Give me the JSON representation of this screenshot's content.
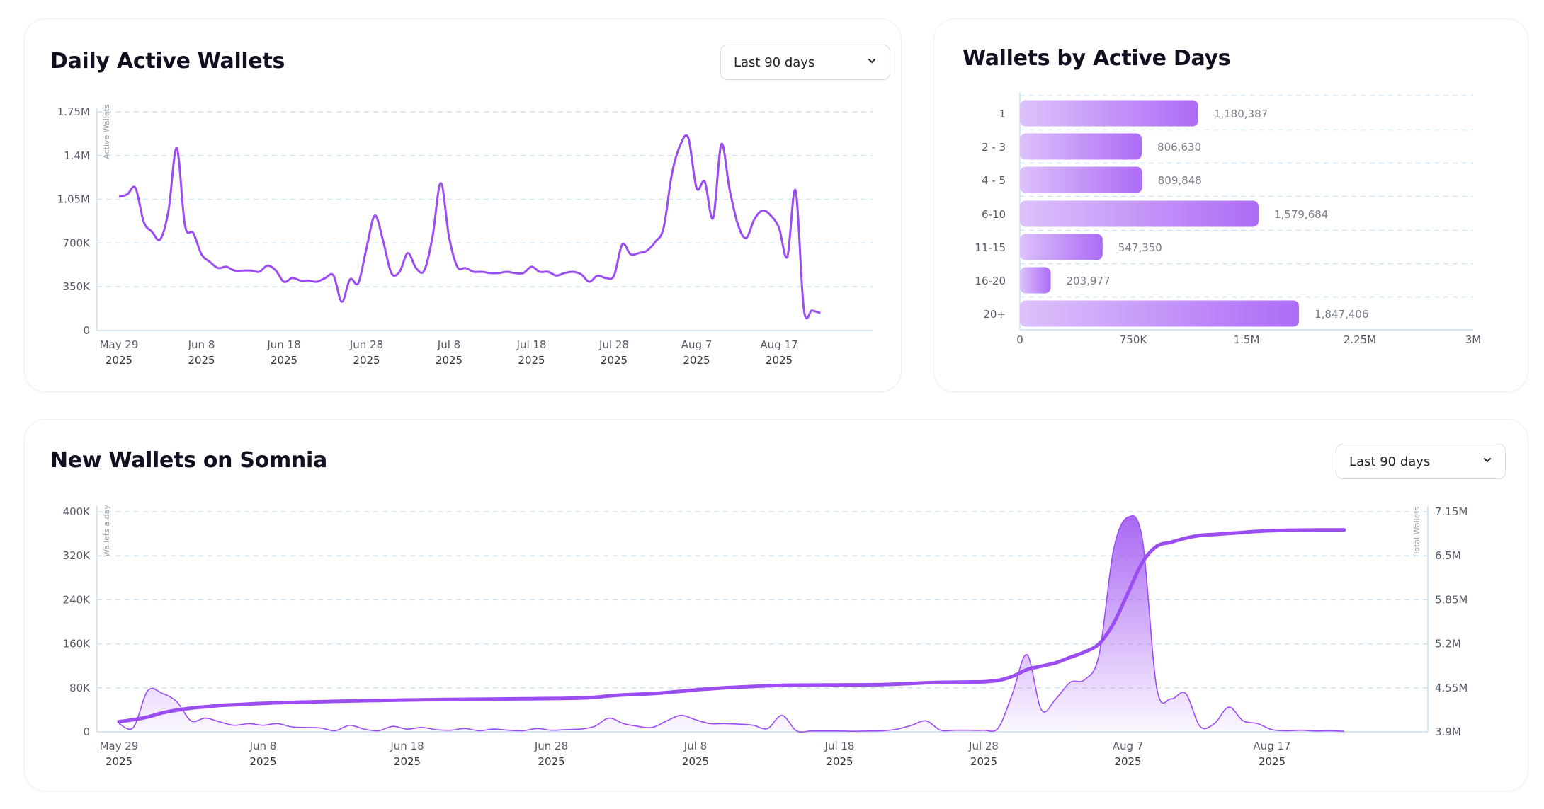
{
  "colors": {
    "accent": "#9b4df2",
    "bar_start": "#dcc2fb",
    "bar_end": "#ad6bf6",
    "grid": "#cfe4f2",
    "tick": "#555a66",
    "axis": "#c9e0f0"
  },
  "dropdown_icon": "chevron-down-icon",
  "daily_active_wallets": {
    "title": "Daily Active Wallets",
    "range_select": "Last 90 days"
  },
  "wallets_by_active_days": {
    "title": "Wallets by Active Days"
  },
  "new_wallets": {
    "title": "New Wallets on Somnia",
    "range_select": "Last 90 days"
  },
  "chart_data": [
    {
      "type": "line",
      "title": "Daily Active Wallets",
      "ylabel": "Active Wallets",
      "ylim": [
        0,
        1750000
      ],
      "y_ticks": [
        "0",
        "350K",
        "700K",
        "1.05M",
        "1.4M",
        "1.75M"
      ],
      "x_ticks": [
        [
          "May 29",
          "2025"
        ],
        [
          "Jun 8",
          "2025"
        ],
        [
          "Jun 18",
          "2025"
        ],
        [
          "Jun 28",
          "2025"
        ],
        [
          "Jul 8",
          "2025"
        ],
        [
          "Jul 18",
          "2025"
        ],
        [
          "Jul 28",
          "2025"
        ],
        [
          "Aug 7",
          "2025"
        ],
        [
          "Aug 17",
          "2025"
        ]
      ],
      "x_start": "2025-05-29",
      "grid": true,
      "series": [
        {
          "values": [
            1070000,
            1090000,
            1140000,
            870000,
            790000,
            730000,
            960000,
            1460000,
            840000,
            780000,
            610000,
            550000,
            500000,
            510000,
            480000,
            480000,
            480000,
            470000,
            520000,
            480000,
            390000,
            420000,
            400000,
            400000,
            390000,
            420000,
            440000,
            230000,
            410000,
            380000,
            660000,
            920000,
            720000,
            460000,
            470000,
            620000,
            500000,
            480000,
            750000,
            1180000,
            750000,
            510000,
            500000,
            470000,
            470000,
            460000,
            460000,
            470000,
            460000,
            460000,
            510000,
            470000,
            470000,
            440000,
            460000,
            470000,
            450000,
            390000,
            440000,
            420000,
            440000,
            690000,
            610000,
            620000,
            640000,
            710000,
            820000,
            1250000,
            1480000,
            1540000,
            1140000,
            1190000,
            900000,
            1490000,
            1130000,
            850000,
            740000,
            890000,
            960000,
            920000,
            820000,
            590000,
            1120000,
            170000,
            160000,
            140000
          ]
        }
      ]
    },
    {
      "type": "bar",
      "orientation": "horizontal",
      "title": "Wallets by Active Days",
      "categories": [
        "1",
        "2 - 3",
        "4 - 5",
        "6-10",
        "11-15",
        "16-20",
        "20+"
      ],
      "values": [
        1180387,
        806630,
        809848,
        1579684,
        547350,
        203977,
        1847406
      ],
      "value_labels": [
        "1,180,387",
        "806,630",
        "809,848",
        "1,579,684",
        "547,350",
        "203,977",
        "1,847,406"
      ],
      "xlim": [
        0,
        3000000
      ],
      "x_ticks": [
        "0",
        "750K",
        "1.5M",
        "2.25M",
        "3M"
      ],
      "grid": true
    },
    {
      "type": "area",
      "title": "New Wallets on Somnia",
      "ylabel": "Wallets a day",
      "y2label": "Total Wallets",
      "ylim": [
        0,
        400000
      ],
      "y2lim": [
        3900000,
        7150000
      ],
      "y_ticks": [
        "0",
        "80K",
        "160K",
        "240K",
        "320K",
        "400K"
      ],
      "y2_ticks": [
        "3.9M",
        "4.55M",
        "5.2M",
        "5.85M",
        "6.5M",
        "7.15M"
      ],
      "x_ticks": [
        [
          "May 29",
          "2025"
        ],
        [
          "Jun 8",
          "2025"
        ],
        [
          "Jun 18",
          "2025"
        ],
        [
          "Jun 28",
          "2025"
        ],
        [
          "Jul 8",
          "2025"
        ],
        [
          "Jul 18",
          "2025"
        ],
        [
          "Jul 28",
          "2025"
        ],
        [
          "Aug 7",
          "2025"
        ],
        [
          "Aug 17",
          "2025"
        ]
      ],
      "x_start": "2025-05-29",
      "grid": true,
      "series": [
        {
          "axis": "left",
          "values": [
            15000,
            8000,
            75000,
            70000,
            55000,
            20000,
            25000,
            18000,
            12000,
            15000,
            12000,
            15000,
            9000,
            8000,
            7000,
            2000,
            12000,
            5000,
            2000,
            10000,
            5000,
            8000,
            4000,
            3000,
            6000,
            2000,
            5000,
            3000,
            2000,
            6000,
            3000,
            4000,
            5000,
            10000,
            25000,
            15000,
            10000,
            8000,
            20000,
            30000,
            22000,
            15000,
            15000,
            14000,
            12000,
            6000,
            30000,
            2000,
            1500,
            1500,
            1500,
            1000,
            1500,
            2000,
            5000,
            12000,
            20000,
            3000,
            3000,
            3000,
            3000,
            7000,
            70000,
            140000,
            40000,
            60000,
            90000,
            95000,
            140000,
            330000,
            390000,
            350000,
            80000,
            60000,
            70000,
            10000,
            15000,
            45000,
            20000,
            15000,
            4000,
            2000,
            3000,
            1500,
            2000,
            1000
          ]
        },
        {
          "axis": "right",
          "values": [
            4050000,
            4080000,
            4120000,
            4180000,
            4220000,
            4250000,
            4270000,
            4290000,
            4300000,
            4310000,
            4320000,
            4330000,
            4335000,
            4340000,
            4345000,
            4350000,
            4355000,
            4360000,
            4363000,
            4366000,
            4370000,
            4373000,
            4376000,
            4378000,
            4380000,
            4382000,
            4384000,
            4386000,
            4388000,
            4390000,
            4392000,
            4395000,
            4400000,
            4410000,
            4430000,
            4445000,
            4455000,
            4465000,
            4480000,
            4500000,
            4520000,
            4535000,
            4550000,
            4560000,
            4570000,
            4580000,
            4588000,
            4590000,
            4591000,
            4592000,
            4593000,
            4594000,
            4595000,
            4598000,
            4605000,
            4615000,
            4625000,
            4630000,
            4633000,
            4636000,
            4640000,
            4660000,
            4720000,
            4820000,
            4870000,
            4920000,
            5000000,
            5080000,
            5200000,
            5500000,
            5950000,
            6400000,
            6640000,
            6700000,
            6760000,
            6800000,
            6815000,
            6830000,
            6845000,
            6860000,
            6870000,
            6875000,
            6878000,
            6880000,
            6881000,
            6882000
          ]
        }
      ]
    }
  ]
}
